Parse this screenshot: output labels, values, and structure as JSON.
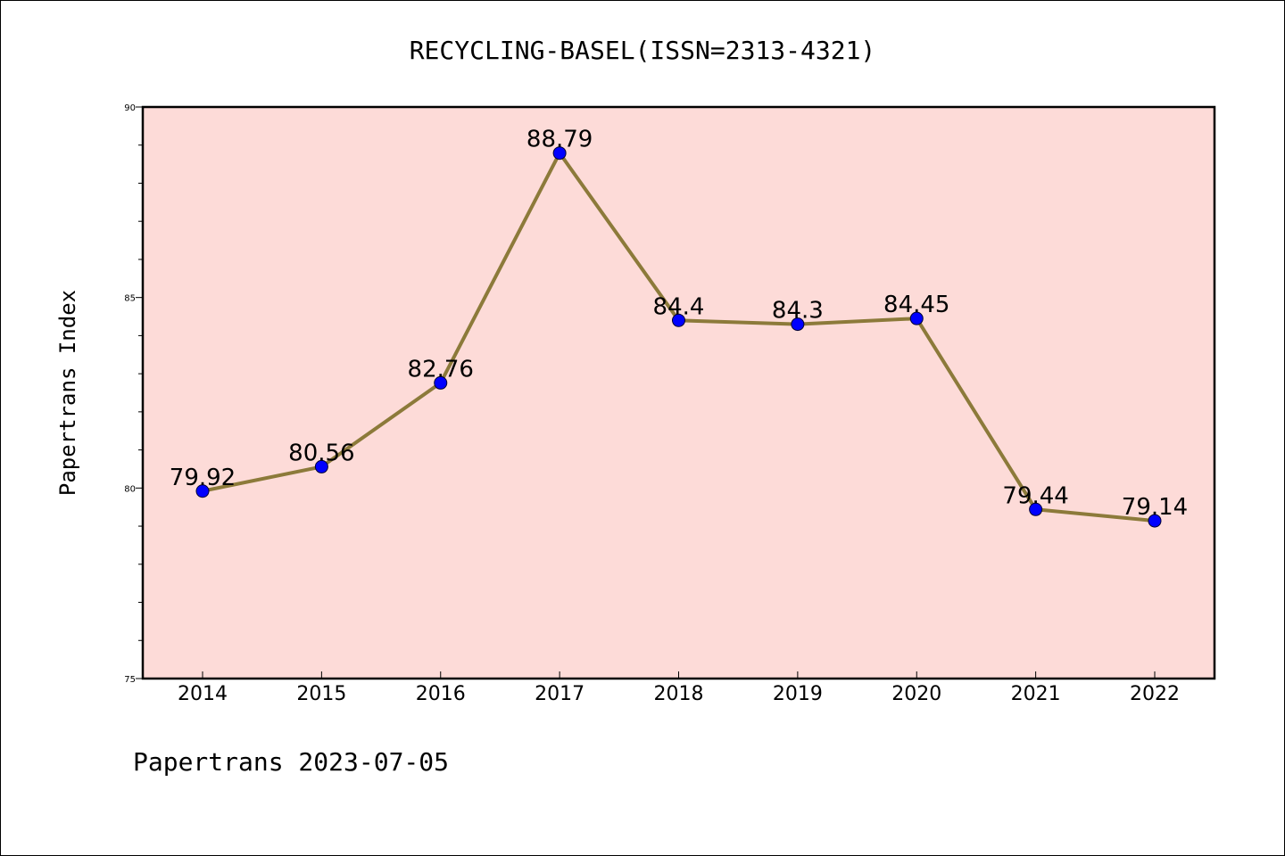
{
  "chart_data": {
    "type": "line",
    "title": "RECYCLING-BASEL(ISSN=2313-4321)",
    "xlabel": "",
    "ylabel": "Papertrans Index",
    "categories": [
      "2014",
      "2015",
      "2016",
      "2017",
      "2018",
      "2019",
      "2020",
      "2021",
      "2022"
    ],
    "values": [
      79.92,
      80.56,
      82.76,
      88.79,
      84.4,
      84.3,
      84.45,
      79.44,
      79.14
    ],
    "data_labels": [
      "79.92",
      "80.56",
      "82.76",
      "88.79",
      "84.4",
      "84.3",
      "84.45",
      "79.44",
      "79.14"
    ],
    "ylim": [
      75,
      90
    ],
    "yticks": [
      "75",
      "80",
      "85",
      "90"
    ],
    "grid": false,
    "colors": {
      "plot_background": "#fddbd8",
      "line": "#8c7a3a",
      "marker": "#0000ff"
    }
  },
  "footer": "Papertrans 2023-07-05"
}
